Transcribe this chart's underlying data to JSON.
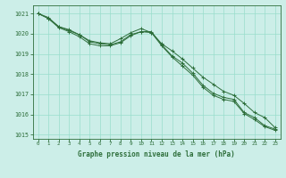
{
  "title": "Graphe pression niveau de la mer (hPa)",
  "background_color": "#cceee8",
  "grid_color": "#99ddcc",
  "line_color": "#2d6e3a",
  "x_ticks": [
    0,
    1,
    2,
    3,
    4,
    5,
    6,
    7,
    8,
    9,
    10,
    11,
    12,
    13,
    14,
    15,
    16,
    17,
    18,
    19,
    20,
    21,
    22,
    23
  ],
  "ylim": [
    1014.8,
    1021.4
  ],
  "yticks": [
    1015,
    1016,
    1017,
    1018,
    1019,
    1020,
    1021
  ],
  "series1": [
    1021.0,
    1020.8,
    1020.35,
    1020.2,
    1019.95,
    1019.65,
    1019.55,
    1019.5,
    1019.75,
    1020.05,
    1020.25,
    1020.05,
    1019.5,
    1019.15,
    1018.75,
    1018.3,
    1017.85,
    1017.5,
    1017.15,
    1016.95,
    1016.55,
    1016.1,
    1015.85,
    1015.35
  ],
  "series2": [
    1021.0,
    1020.75,
    1020.35,
    1020.15,
    1019.95,
    1019.6,
    1019.5,
    1019.45,
    1019.6,
    1019.95,
    1020.1,
    1020.1,
    1019.45,
    1018.9,
    1018.55,
    1018.05,
    1017.45,
    1017.05,
    1016.85,
    1016.75,
    1016.1,
    1015.85,
    1015.45,
    1015.28
  ],
  "series3": [
    1021.0,
    1020.75,
    1020.3,
    1020.1,
    1019.85,
    1019.5,
    1019.4,
    1019.4,
    1019.55,
    1019.9,
    1020.1,
    1020.05,
    1019.4,
    1018.85,
    1018.4,
    1017.95,
    1017.35,
    1016.95,
    1016.75,
    1016.65,
    1016.05,
    1015.75,
    1015.4,
    1015.22
  ]
}
